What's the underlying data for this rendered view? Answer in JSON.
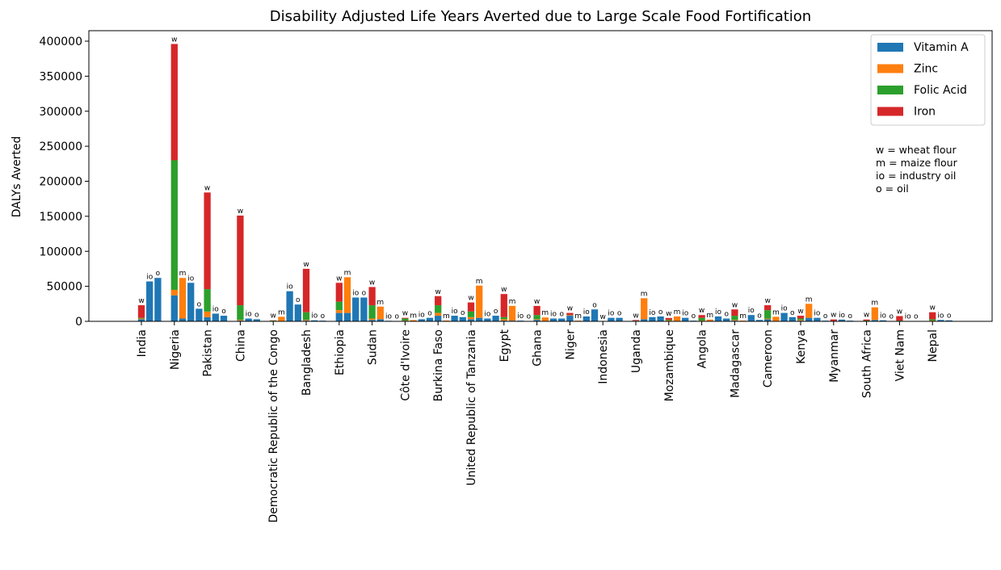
{
  "chart_data": {
    "type": "bar",
    "title": "Disability Adjusted Life Years Averted due to Large Scale Food Fortification",
    "ylabel": "DALYs Averted",
    "xlabel": "",
    "ylim": [
      0,
      415000
    ],
    "yticks": [
      0,
      50000,
      100000,
      150000,
      200000,
      250000,
      300000,
      350000,
      400000
    ],
    "grid": false,
    "legend_position": "top-right",
    "legend": [
      {
        "key": "vitamin_a",
        "name": "Vitamin A",
        "color": "#1f77b4"
      },
      {
        "key": "zinc",
        "name": "Zinc",
        "color": "#ff7f0e"
      },
      {
        "key": "folic_acid",
        "name": "Folic Acid",
        "color": "#2ca02c"
      },
      {
        "key": "iron",
        "name": "Iron",
        "color": "#d62728"
      }
    ],
    "note": [
      "w = wheat flour",
      "m = maize flour",
      "io = industry oil",
      "o = oil"
    ],
    "countries": [
      {
        "name": "India",
        "bars": [
          {
            "label": "w",
            "vitamin_a": 3000,
            "zinc": 1000,
            "folic_acid": 1000,
            "iron": 18000
          },
          {
            "label": "io",
            "vitamin_a": 57000,
            "zinc": 0,
            "folic_acid": 0,
            "iron": 0
          },
          {
            "label": "o",
            "vitamin_a": 62000,
            "zinc": 0,
            "folic_acid": 0,
            "iron": 0
          }
        ]
      },
      {
        "name": "Nigeria",
        "bars": [
          {
            "label": "w",
            "vitamin_a": 37000,
            "zinc": 8000,
            "folic_acid": 185000,
            "iron": 166000
          },
          {
            "label": "m",
            "vitamin_a": 4000,
            "zinc": 58000,
            "folic_acid": 0,
            "iron": 0
          },
          {
            "label": "io",
            "vitamin_a": 55000,
            "zinc": 0,
            "folic_acid": 0,
            "iron": 0
          },
          {
            "label": "o",
            "vitamin_a": 18000,
            "zinc": 0,
            "folic_acid": 0,
            "iron": 0
          }
        ]
      },
      {
        "name": "Pakistan",
        "bars": [
          {
            "label": "w",
            "vitamin_a": 6000,
            "zinc": 8000,
            "folic_acid": 32000,
            "iron": 138000
          },
          {
            "label": "io",
            "vitamin_a": 11000,
            "zinc": 0,
            "folic_acid": 0,
            "iron": 0
          },
          {
            "label": "o",
            "vitamin_a": 8000,
            "zinc": 0,
            "folic_acid": 0,
            "iron": 0
          }
        ]
      },
      {
        "name": "China",
        "bars": [
          {
            "label": "w",
            "vitamin_a": 1000,
            "zinc": 1000,
            "folic_acid": 21000,
            "iron": 128000
          },
          {
            "label": "io",
            "vitamin_a": 4000,
            "zinc": 0,
            "folic_acid": 0,
            "iron": 0
          },
          {
            "label": "o",
            "vitamin_a": 3000,
            "zinc": 0,
            "folic_acid": 0,
            "iron": 0
          }
        ]
      },
      {
        "name": "Democratic Republic of the Congo",
        "bars": [
          {
            "label": "w",
            "vitamin_a": 0,
            "zinc": 1000,
            "folic_acid": 200,
            "iron": 300
          },
          {
            "label": "m",
            "vitamin_a": 500,
            "zinc": 6000,
            "folic_acid": 0,
            "iron": 0
          },
          {
            "label": "io",
            "vitamin_a": 43000,
            "zinc": 0,
            "folic_acid": 0,
            "iron": 0
          },
          {
            "label": "o",
            "vitamin_a": 24000,
            "zinc": 0,
            "folic_acid": 0,
            "iron": 0
          }
        ]
      },
      {
        "name": "Bangladesh",
        "bars": [
          {
            "label": "w",
            "vitamin_a": 1000,
            "zinc": 1000,
            "folic_acid": 11000,
            "iron": 62000
          },
          {
            "label": "io",
            "vitamin_a": 1500,
            "zinc": 0,
            "folic_acid": 0,
            "iron": 0
          },
          {
            "label": "o",
            "vitamin_a": 1000,
            "zinc": 0,
            "folic_acid": 0,
            "iron": 0
          }
        ]
      },
      {
        "name": "Ethiopia",
        "bars": [
          {
            "label": "w",
            "vitamin_a": 12000,
            "zinc": 4000,
            "folic_acid": 12000,
            "iron": 27000
          },
          {
            "label": "m",
            "vitamin_a": 12000,
            "zinc": 51000,
            "folic_acid": 0,
            "iron": 0
          },
          {
            "label": "io",
            "vitamin_a": 34000,
            "zinc": 0,
            "folic_acid": 0,
            "iron": 0
          },
          {
            "label": "o",
            "vitamin_a": 34000,
            "zinc": 0,
            "folic_acid": 0,
            "iron": 0
          }
        ]
      },
      {
        "name": "Sudan",
        "bars": [
          {
            "label": "w",
            "vitamin_a": 2000,
            "zinc": 2000,
            "folic_acid": 19000,
            "iron": 26000
          },
          {
            "label": "m",
            "vitamin_a": 3000,
            "zinc": 18000,
            "folic_acid": 0,
            "iron": 0
          },
          {
            "label": "io",
            "vitamin_a": 800,
            "zinc": 0,
            "folic_acid": 0,
            "iron": 0
          },
          {
            "label": "o",
            "vitamin_a": 500,
            "zinc": 0,
            "folic_acid": 0,
            "iron": 0
          }
        ]
      },
      {
        "name": "Côte d'Ivoire",
        "bars": [
          {
            "label": "w",
            "vitamin_a": 500,
            "zinc": 500,
            "folic_acid": 3000,
            "iron": 1000
          },
          {
            "label": "m",
            "vitamin_a": 300,
            "zinc": 1500,
            "folic_acid": 0,
            "iron": 0
          },
          {
            "label": "io",
            "vitamin_a": 3000,
            "zinc": 0,
            "folic_acid": 0,
            "iron": 0
          },
          {
            "label": "o",
            "vitamin_a": 5000,
            "zinc": 0,
            "folic_acid": 0,
            "iron": 0
          }
        ]
      },
      {
        "name": "Burkina Faso",
        "bars": [
          {
            "label": "w",
            "vitamin_a": 8000,
            "zinc": 4000,
            "folic_acid": 11000,
            "iron": 13000
          },
          {
            "label": "m",
            "vitamin_a": 200,
            "zinc": 1000,
            "folic_acid": 0,
            "iron": 0
          },
          {
            "label": "io",
            "vitamin_a": 8000,
            "zinc": 0,
            "folic_acid": 0,
            "iron": 0
          },
          {
            "label": "o",
            "vitamin_a": 6000,
            "zinc": 0,
            "folic_acid": 0,
            "iron": 0
          }
        ]
      },
      {
        "name": "United Republic of Tanzania",
        "bars": [
          {
            "label": "w",
            "vitamin_a": 3000,
            "zinc": 3000,
            "folic_acid": 8000,
            "iron": 13000
          },
          {
            "label": "m",
            "vitamin_a": 5000,
            "zinc": 46000,
            "folic_acid": 0,
            "iron": 0
          },
          {
            "label": "io",
            "vitamin_a": 4000,
            "zinc": 0,
            "folic_acid": 0,
            "iron": 0
          },
          {
            "label": "o",
            "vitamin_a": 8000,
            "zinc": 0,
            "folic_acid": 0,
            "iron": 0
          }
        ]
      },
      {
        "name": "Egypt",
        "bars": [
          {
            "label": "w",
            "vitamin_a": 1000,
            "zinc": 2000,
            "folic_acid": 3000,
            "iron": 33000
          },
          {
            "label": "m",
            "vitamin_a": 1000,
            "zinc": 21000,
            "folic_acid": 0,
            "iron": 0
          },
          {
            "label": "io",
            "vitamin_a": 1000,
            "zinc": 0,
            "folic_acid": 0,
            "iron": 0
          },
          {
            "label": "o",
            "vitamin_a": 500,
            "zinc": 0,
            "folic_acid": 0,
            "iron": 0
          }
        ]
      },
      {
        "name": "Ghana",
        "bars": [
          {
            "label": "w",
            "vitamin_a": 2000,
            "zinc": 1000,
            "folic_acid": 6000,
            "iron": 13000
          },
          {
            "label": "m",
            "vitamin_a": 500,
            "zinc": 5000,
            "folic_acid": 0,
            "iron": 0
          },
          {
            "label": "io",
            "vitamin_a": 4000,
            "zinc": 0,
            "folic_acid": 0,
            "iron": 0
          },
          {
            "label": "o",
            "vitamin_a": 4000,
            "zinc": 0,
            "folic_acid": 0,
            "iron": 0
          }
        ]
      },
      {
        "name": "Niger",
        "bars": [
          {
            "label": "w",
            "vitamin_a": 8000,
            "zinc": 500,
            "folic_acid": 500,
            "iron": 3000
          },
          {
            "label": "m",
            "vitamin_a": 500,
            "zinc": 500,
            "folic_acid": 0,
            "iron": 0
          },
          {
            "label": "io",
            "vitamin_a": 7000,
            "zinc": 0,
            "folic_acid": 0,
            "iron": 0
          },
          {
            "label": "o",
            "vitamin_a": 17000,
            "zinc": 0,
            "folic_acid": 0,
            "iron": 0
          }
        ]
      },
      {
        "name": "Indonesia",
        "bars": [
          {
            "label": "w",
            "vitamin_a": 0,
            "zinc": 0,
            "folic_acid": 0,
            "iron": 0
          },
          {
            "label": "io",
            "vitamin_a": 5000,
            "zinc": 0,
            "folic_acid": 0,
            "iron": 0
          },
          {
            "label": "o",
            "vitamin_a": 5000,
            "zinc": 0,
            "folic_acid": 0,
            "iron": 0
          }
        ]
      },
      {
        "name": "Uganda",
        "bars": [
          {
            "label": "w",
            "vitamin_a": 300,
            "zinc": 300,
            "folic_acid": 300,
            "iron": 1000
          },
          {
            "label": "m",
            "vitamin_a": 3000,
            "zinc": 30000,
            "folic_acid": 0,
            "iron": 0
          },
          {
            "label": "io",
            "vitamin_a": 6000,
            "zinc": 0,
            "folic_acid": 0,
            "iron": 0
          },
          {
            "label": "o",
            "vitamin_a": 7000,
            "zinc": 0,
            "folic_acid": 0,
            "iron": 0
          }
        ]
      },
      {
        "name": "Mozambique",
        "bars": [
          {
            "label": "w",
            "vitamin_a": 300,
            "zinc": 1000,
            "folic_acid": 1000,
            "iron": 2500
          },
          {
            "label": "m",
            "vitamin_a": 500,
            "zinc": 6500,
            "folic_acid": 0,
            "iron": 0
          },
          {
            "label": "io",
            "vitamin_a": 5000,
            "zinc": 0,
            "folic_acid": 0,
            "iron": 0
          },
          {
            "label": "o",
            "vitamin_a": 1000,
            "zinc": 0,
            "folic_acid": 0,
            "iron": 0
          }
        ]
      },
      {
        "name": "Angola",
        "bars": [
          {
            "label": "w",
            "vitamin_a": 500,
            "zinc": 500,
            "folic_acid": 4000,
            "iron": 4000
          },
          {
            "label": "m",
            "vitamin_a": 500,
            "zinc": 2000,
            "folic_acid": 0,
            "iron": 0
          },
          {
            "label": "io",
            "vitamin_a": 7000,
            "zinc": 0,
            "folic_acid": 0,
            "iron": 0
          },
          {
            "label": "o",
            "vitamin_a": 4000,
            "zinc": 0,
            "folic_acid": 0,
            "iron": 0
          }
        ]
      },
      {
        "name": "Madagascar",
        "bars": [
          {
            "label": "w",
            "vitamin_a": 1000,
            "zinc": 1000,
            "folic_acid": 6000,
            "iron": 9000
          },
          {
            "label": "m",
            "vitamin_a": 100,
            "zinc": 1000,
            "folic_acid": 0,
            "iron": 0
          },
          {
            "label": "io",
            "vitamin_a": 9000,
            "zinc": 0,
            "folic_acid": 0,
            "iron": 0
          },
          {
            "label": "o",
            "vitamin_a": 2000,
            "zinc": 0,
            "folic_acid": 0,
            "iron": 0
          }
        ]
      },
      {
        "name": "Cameroon",
        "bars": [
          {
            "label": "w",
            "vitamin_a": 3000,
            "zinc": 1000,
            "folic_acid": 12000,
            "iron": 7000
          },
          {
            "label": "m",
            "vitamin_a": 500,
            "zinc": 6000,
            "folic_acid": 0,
            "iron": 0
          },
          {
            "label": "io",
            "vitamin_a": 12000,
            "zinc": 0,
            "folic_acid": 0,
            "iron": 0
          },
          {
            "label": "o",
            "vitamin_a": 6000,
            "zinc": 0,
            "folic_acid": 0,
            "iron": 0
          }
        ]
      },
      {
        "name": "Kenya",
        "bars": [
          {
            "label": "w",
            "vitamin_a": 1000,
            "zinc": 1000,
            "folic_acid": 2000,
            "iron": 4000
          },
          {
            "label": "m",
            "vitamin_a": 5000,
            "zinc": 20000,
            "folic_acid": 0,
            "iron": 0
          },
          {
            "label": "io",
            "vitamin_a": 5000,
            "zinc": 0,
            "folic_acid": 0,
            "iron": 0
          },
          {
            "label": "o",
            "vitamin_a": 1000,
            "zinc": 0,
            "folic_acid": 0,
            "iron": 0
          }
        ]
      },
      {
        "name": "Myanmar",
        "bars": [
          {
            "label": "w",
            "vitamin_a": 200,
            "zinc": 200,
            "folic_acid": 300,
            "iron": 2000
          },
          {
            "label": "io",
            "vitamin_a": 2500,
            "zinc": 0,
            "folic_acid": 0,
            "iron": 0
          },
          {
            "label": "o",
            "vitamin_a": 1000,
            "zinc": 0,
            "folic_acid": 0,
            "iron": 0
          }
        ]
      },
      {
        "name": "South Africa",
        "bars": [
          {
            "label": "w",
            "vitamin_a": 300,
            "zinc": 300,
            "folic_acid": 500,
            "iron": 1500
          },
          {
            "label": "m",
            "vitamin_a": 2000,
            "zinc": 18000,
            "folic_acid": 0,
            "iron": 0
          },
          {
            "label": "io",
            "vitamin_a": 1500,
            "zinc": 0,
            "folic_acid": 0,
            "iron": 0
          },
          {
            "label": "o",
            "vitamin_a": 500,
            "zinc": 0,
            "folic_acid": 0,
            "iron": 0
          }
        ]
      },
      {
        "name": "Viet Nam",
        "bars": [
          {
            "label": "w",
            "vitamin_a": 200,
            "zinc": 300,
            "folic_acid": 500,
            "iron": 6500
          },
          {
            "label": "io",
            "vitamin_a": 500,
            "zinc": 0,
            "folic_acid": 0,
            "iron": 0
          },
          {
            "label": "o",
            "vitamin_a": 300,
            "zinc": 0,
            "folic_acid": 0,
            "iron": 0
          }
        ]
      },
      {
        "name": "Nepal",
        "bars": [
          {
            "label": "w",
            "vitamin_a": 500,
            "zinc": 500,
            "folic_acid": 2000,
            "iron": 10000
          },
          {
            "label": "io",
            "vitamin_a": 2000,
            "zinc": 0,
            "folic_acid": 0,
            "iron": 0
          },
          {
            "label": "o",
            "vitamin_a": 1500,
            "zinc": 0,
            "folic_acid": 0,
            "iron": 0
          }
        ]
      }
    ]
  }
}
